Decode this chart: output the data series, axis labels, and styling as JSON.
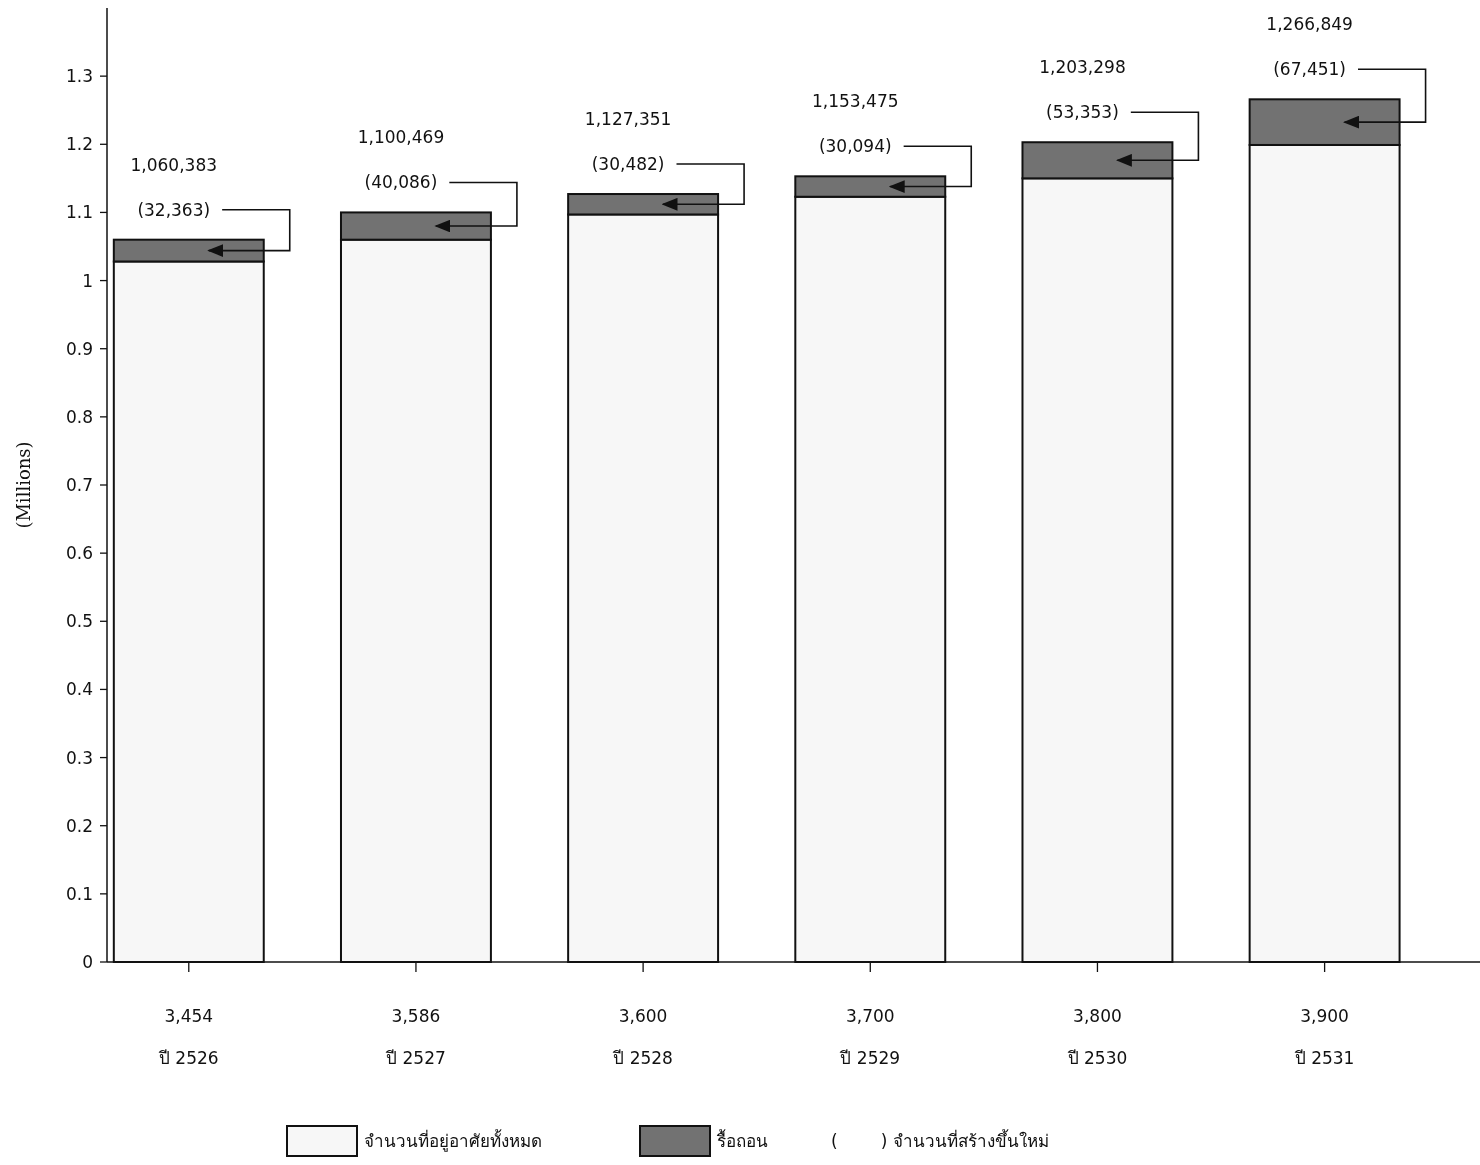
{
  "chart_data": {
    "type": "bar",
    "stacked": true,
    "ylabel": "(Millions)",
    "categories": [
      "3,454\nปี 2526",
      "3,586\nปี 2527",
      "3,600\nปี 2528",
      "3,700\nปี 2529",
      "3,800\nปี 2530",
      "3,900\nปี 2531"
    ],
    "series": [
      {
        "name": "จำนวนที่อยู่อาศัยทั้งหมด",
        "color": "#f7f7f7",
        "values": [
          1.028,
          1.06,
          1.097,
          1.123,
          1.15,
          1.199
        ]
      },
      {
        "name": "รื้อถอน",
        "color": "#727272",
        "values": [
          0.032,
          0.04,
          0.03,
          0.03,
          0.053,
          0.067
        ]
      }
    ],
    "ylim": [
      0,
      1.4
    ],
    "yticks": [
      0,
      0.1,
      0.2,
      0.3,
      0.4,
      0.5,
      0.6,
      0.7,
      0.8,
      0.9,
      1,
      1.1,
      1.2,
      1.3
    ],
    "grid": false,
    "legend": "bottom",
    "annotations": [
      "1,060,383",
      "1,100,469",
      "1,127,351",
      "1,153,475",
      "1,203,298",
      "1,266,849",
      {
        "text": "(32,363)",
        "x": "3,454\nปี 2526",
        "y": 1.06
      },
      {
        "text": "(40,086)",
        "x": "3,586\nปี 2527",
        "y": 1.1
      },
      {
        "text": "(30,482)",
        "x": "3,600\nปี 2528",
        "y": 1.127
      },
      {
        "text": "(30,094)",
        "x": "3,700\nปี 2529",
        "y": 1.153
      },
      {
        "text": "(53,353)",
        "x": "3,800\nปี 2530",
        "y": 1.203
      },
      {
        "text": "(67,451)",
        "x": "3,900\nปี 2531",
        "y": 1.266
      },
      "(        ) จำนวนที่สร้างขึ้นใหม่"
    ]
  }
}
